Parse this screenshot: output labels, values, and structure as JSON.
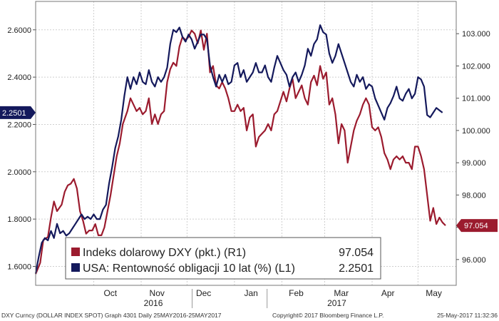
{
  "chart_data": {
    "type": "line",
    "grid": true,
    "left_axis": {
      "range": [
        1.52,
        2.72
      ],
      "ticks": [
        "1.6000",
        "1.8000",
        "2.0000",
        "2.2000",
        "2.4000",
        "2.6000"
      ],
      "tick_values": [
        1.6,
        1.8,
        2.0,
        2.2,
        2.4,
        2.6
      ]
    },
    "right_axis": {
      "range": [
        95.2,
        104.0
      ],
      "ticks": [
        "96.000",
        "97.000",
        "98.000",
        "99.000",
        "100.000",
        "101.000",
        "102.000",
        "103.000"
      ],
      "tick_values": [
        96,
        97,
        98,
        99,
        100,
        101,
        102,
        103
      ]
    },
    "x_axis": {
      "months": [
        {
          "label": "Oct",
          "day": 38
        },
        {
          "label": "Nov",
          "day": 69
        },
        {
          "label": "Dec",
          "day": 99
        },
        {
          "label": "Jan",
          "day": 130
        },
        {
          "label": "Feb",
          "day": 161
        },
        {
          "label": "Mar",
          "day": 189
        },
        {
          "label": "Apr",
          "day": 220
        },
        {
          "label": "May",
          "day": 250
        }
      ],
      "years": [
        {
          "label": "2016",
          "day": 69
        },
        {
          "label": "2017",
          "day": 189
        }
      ],
      "range": [
        0,
        275
      ]
    },
    "series": [
      {
        "name": "Indeks dolarowy DXY (pkt.) (R1)",
        "axis": "right",
        "color": "#9b1b2e",
        "last_label": "97.054",
        "points": [
          [
            0,
            95.55
          ],
          [
            3,
            95.9
          ],
          [
            5,
            96.6
          ],
          [
            8,
            96.7
          ],
          [
            10,
            97.3
          ],
          [
            12,
            97.8
          ],
          [
            14,
            97.5
          ],
          [
            17,
            97.7
          ],
          [
            19,
            98.1
          ],
          [
            21,
            98.3
          ],
          [
            23,
            98.35
          ],
          [
            25,
            98.5
          ],
          [
            27,
            98.2
          ],
          [
            29,
            97.5
          ],
          [
            31,
            97.2
          ],
          [
            33,
            96.8
          ],
          [
            35,
            96.9
          ],
          [
            37,
            96.9
          ],
          [
            39,
            97.1
          ],
          [
            41,
            96.75
          ],
          [
            43,
            96.75
          ],
          [
            45,
            97.0
          ],
          [
            47,
            97.5
          ],
          [
            49,
            98.0
          ],
          [
            51,
            98.6
          ],
          [
            53,
            99.2
          ],
          [
            55,
            99.6
          ],
          [
            57,
            100.2
          ],
          [
            60,
            100.6
          ],
          [
            62,
            101.0
          ],
          [
            64,
            100.8
          ],
          [
            66,
            100.6
          ],
          [
            68,
            100.7
          ],
          [
            70,
            100.5
          ],
          [
            72,
            100.6
          ],
          [
            74,
            101.0
          ],
          [
            76,
            100.2
          ],
          [
            78,
            100.5
          ],
          [
            80,
            100.2
          ],
          [
            82,
            100.5
          ],
          [
            84,
            100.6
          ],
          [
            86,
            101.5
          ],
          [
            88,
            101.9
          ],
          [
            90,
            102.1
          ],
          [
            92,
            102.0
          ],
          [
            94,
            102.6
          ],
          [
            96,
            102.9
          ],
          [
            98,
            102.8
          ],
          [
            100,
            102.9
          ],
          [
            102,
            103.1
          ],
          [
            104,
            103.0
          ],
          [
            106,
            102.7
          ],
          [
            108,
            103.1
          ],
          [
            110,
            102.5
          ],
          [
            112,
            103.0
          ],
          [
            114,
            101.8
          ],
          [
            116,
            102.0
          ],
          [
            118,
            101.4
          ],
          [
            120,
            101.3
          ],
          [
            122,
            101.5
          ],
          [
            124,
            101.3
          ],
          [
            126,
            101.0
          ],
          [
            128,
            100.6
          ],
          [
            130,
            100.6
          ],
          [
            132,
            100.8
          ],
          [
            134,
            100.6
          ],
          [
            136,
            100.7
          ],
          [
            138,
            100.0
          ],
          [
            140,
            100.4
          ],
          [
            142,
            100.5
          ],
          [
            144,
            99.5
          ],
          [
            146,
            99.8
          ],
          [
            148,
            99.9
          ],
          [
            150,
            100.0
          ],
          [
            152,
            100.2
          ],
          [
            154,
            100.0
          ],
          [
            156,
            100.5
          ],
          [
            158,
            100.6
          ],
          [
            160,
            100.9
          ],
          [
            162,
            101.2
          ],
          [
            164,
            100.9
          ],
          [
            166,
            101.3
          ],
          [
            168,
            101.6
          ],
          [
            170,
            101.0
          ],
          [
            172,
            101.2
          ],
          [
            174,
            101.4
          ],
          [
            176,
            101.0
          ],
          [
            178,
            100.8
          ],
          [
            180,
            101.5
          ],
          [
            182,
            101.7
          ],
          [
            184,
            101.4
          ],
          [
            186,
            102.0
          ],
          [
            188,
            101.6
          ],
          [
            190,
            101.8
          ],
          [
            192,
            100.8
          ],
          [
            194,
            101.0
          ],
          [
            196,
            100.5
          ],
          [
            198,
            99.6
          ],
          [
            200,
            100.2
          ],
          [
            202,
            100.0
          ],
          [
            204,
            99.0
          ],
          [
            206,
            99.5
          ],
          [
            208,
            100.0
          ],
          [
            210,
            100.3
          ],
          [
            212,
            100.5
          ],
          [
            214,
            100.8
          ],
          [
            216,
            101.0
          ],
          [
            218,
            100.8
          ],
          [
            220,
            100.1
          ],
          [
            222,
            100.0
          ],
          [
            224,
            100.1
          ],
          [
            226,
            99.8
          ],
          [
            228,
            99.3
          ],
          [
            230,
            99.1
          ],
          [
            232,
            98.8
          ],
          [
            234,
            99.1
          ],
          [
            236,
            99.2
          ],
          [
            238,
            99.1
          ],
          [
            240,
            99.2
          ],
          [
            242,
            99.0
          ],
          [
            244,
            99.0
          ],
          [
            246,
            98.8
          ],
          [
            248,
            99.5
          ],
          [
            250,
            99.5
          ],
          [
            252,
            99.2
          ],
          [
            254,
            98.8
          ],
          [
            256,
            98.0
          ],
          [
            258,
            97.2
          ],
          [
            260,
            97.6
          ],
          [
            262,
            97.1
          ],
          [
            264,
            97.3
          ],
          [
            266,
            97.15
          ],
          [
            268,
            97.054
          ]
        ]
      },
      {
        "name": "USA: Rentowność obligacji 10 lat (%) (L1)",
        "axis": "left",
        "color": "#14195c",
        "last_label": "2.2501",
        "points": [
          [
            0,
            1.57
          ],
          [
            2,
            1.64
          ],
          [
            4,
            1.7
          ],
          [
            6,
            1.72
          ],
          [
            8,
            1.71
          ],
          [
            10,
            1.75
          ],
          [
            12,
            1.72
          ],
          [
            14,
            1.78
          ],
          [
            16,
            1.74
          ],
          [
            18,
            1.75
          ],
          [
            20,
            1.73
          ],
          [
            22,
            1.74
          ],
          [
            24,
            1.76
          ],
          [
            26,
            1.78
          ],
          [
            28,
            1.8
          ],
          [
            30,
            1.82
          ],
          [
            32,
            1.8
          ],
          [
            34,
            1.81
          ],
          [
            36,
            1.8
          ],
          [
            38,
            1.82
          ],
          [
            40,
            1.8
          ],
          [
            42,
            1.8
          ],
          [
            44,
            1.84
          ],
          [
            46,
            1.86
          ],
          [
            48,
            1.95
          ],
          [
            50,
            2.02
          ],
          [
            52,
            2.1
          ],
          [
            54,
            2.15
          ],
          [
            56,
            2.22
          ],
          [
            58,
            2.32
          ],
          [
            60,
            2.4
          ],
          [
            62,
            2.35
          ],
          [
            64,
            2.4
          ],
          [
            66,
            2.37
          ],
          [
            68,
            2.42
          ],
          [
            70,
            2.38
          ],
          [
            72,
            2.37
          ],
          [
            74,
            2.43
          ],
          [
            76,
            2.38
          ],
          [
            78,
            2.36
          ],
          [
            80,
            2.4
          ],
          [
            82,
            2.38
          ],
          [
            84,
            2.4
          ],
          [
            86,
            2.44
          ],
          [
            88,
            2.54
          ],
          [
            90,
            2.6
          ],
          [
            92,
            2.59
          ],
          [
            94,
            2.61
          ],
          [
            96,
            2.57
          ],
          [
            98,
            2.55
          ],
          [
            100,
            2.58
          ],
          [
            102,
            2.56
          ],
          [
            104,
            2.52
          ],
          [
            106,
            2.55
          ],
          [
            108,
            2.58
          ],
          [
            110,
            2.58
          ],
          [
            112,
            2.56
          ],
          [
            114,
            2.45
          ],
          [
            116,
            2.4
          ],
          [
            118,
            2.36
          ],
          [
            120,
            2.41
          ],
          [
            122,
            2.38
          ],
          [
            124,
            2.41
          ],
          [
            126,
            2.37
          ],
          [
            128,
            2.38
          ],
          [
            130,
            2.45
          ],
          [
            132,
            2.46
          ],
          [
            134,
            2.4
          ],
          [
            136,
            2.43
          ],
          [
            138,
            2.38
          ],
          [
            140,
            2.4
          ],
          [
            142,
            2.42
          ],
          [
            144,
            2.46
          ],
          [
            146,
            2.42
          ],
          [
            148,
            2.42
          ],
          [
            150,
            2.45
          ],
          [
            152,
            2.4
          ],
          [
            154,
            2.38
          ],
          [
            156,
            2.44
          ],
          [
            158,
            2.49
          ],
          [
            160,
            2.46
          ],
          [
            162,
            2.43
          ],
          [
            164,
            2.41
          ],
          [
            166,
            2.36
          ],
          [
            168,
            2.4
          ],
          [
            170,
            2.42
          ],
          [
            172,
            2.38
          ],
          [
            174,
            2.41
          ],
          [
            176,
            2.45
          ],
          [
            178,
            2.52
          ],
          [
            180,
            2.49
          ],
          [
            182,
            2.54
          ],
          [
            184,
            2.56
          ],
          [
            186,
            2.62
          ],
          [
            188,
            2.59
          ],
          [
            190,
            2.58
          ],
          [
            192,
            2.5
          ],
          [
            194,
            2.46
          ],
          [
            196,
            2.49
          ],
          [
            198,
            2.54
          ],
          [
            200,
            2.5
          ],
          [
            202,
            2.46
          ],
          [
            204,
            2.42
          ],
          [
            206,
            2.38
          ],
          [
            208,
            2.36
          ],
          [
            210,
            2.41
          ],
          [
            212,
            2.38
          ],
          [
            214,
            2.4
          ],
          [
            216,
            2.35
          ],
          [
            218,
            2.37
          ],
          [
            220,
            2.36
          ],
          [
            222,
            2.31
          ],
          [
            224,
            2.28
          ],
          [
            226,
            2.25
          ],
          [
            228,
            2.22
          ],
          [
            230,
            2.27
          ],
          [
            232,
            2.29
          ],
          [
            234,
            2.32
          ],
          [
            236,
            2.36
          ],
          [
            238,
            2.31
          ],
          [
            240,
            2.3
          ],
          [
            242,
            2.33
          ],
          [
            244,
            2.35
          ],
          [
            246,
            2.31
          ],
          [
            248,
            2.33
          ],
          [
            250,
            2.4
          ],
          [
            252,
            2.39
          ],
          [
            254,
            2.36
          ],
          [
            256,
            2.24
          ],
          [
            258,
            2.23
          ],
          [
            260,
            2.25
          ],
          [
            262,
            2.27
          ],
          [
            264,
            2.26
          ],
          [
            266,
            2.2501
          ]
        ]
      }
    ],
    "legend": {
      "placement": "bottom-center",
      "entries": [
        {
          "label": "Indeks dolarowy DXY (pkt.) (R1)",
          "value": "97.054",
          "color": "#9b1b2e"
        },
        {
          "label": "USA: Rentowność obligacji 10 lat (%) (L1)",
          "value": "2.2501",
          "color": "#14195c"
        }
      ]
    }
  },
  "footer": {
    "left": "DXY Curncy (DOLLAR INDEX SPOT) Graph 4301  Daily 25MAY2016-25MAY2017",
    "center": "Copyright© 2017 Bloomberg Finance L.P.",
    "right": "25-May-2017 11:32:36"
  }
}
